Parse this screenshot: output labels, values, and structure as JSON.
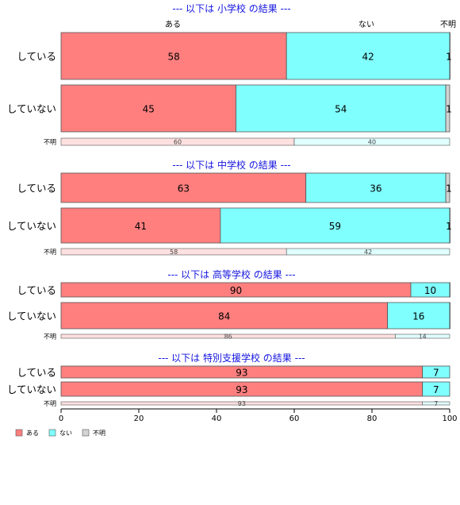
{
  "colors": {
    "ある": "#ff7f7f",
    "ない": "#80ffff",
    "不明": "#d3d3d3",
    "ある_light": "#ffe0e0",
    "ない_light": "#e0ffff",
    "不明_light": "#f2f2f2",
    "title": "#1515e0"
  },
  "column_headers": [
    "ある",
    "ない",
    "不明"
  ],
  "legend": [
    "ある",
    "ない",
    "不明"
  ],
  "chart_data": {
    "type": "bar",
    "orientation": "horizontal-stacked-percent",
    "xlim": [
      0,
      100
    ],
    "x_ticks": [
      0,
      20,
      40,
      60,
      80,
      100
    ],
    "series_names": [
      "ある",
      "ない",
      "不明"
    ],
    "panels": [
      {
        "title": "--- 以下は 小学校 の結果 ---",
        "rows": [
          {
            "label": "している",
            "values": [
              58,
              42,
              1
            ]
          },
          {
            "label": "していない",
            "values": [
              45,
              54,
              1
            ]
          },
          {
            "label": "不明",
            "values": [
              60,
              40,
              0
            ]
          }
        ]
      },
      {
        "title": "--- 以下は 中学校 の結果 ---",
        "rows": [
          {
            "label": "している",
            "values": [
              63,
              36,
              1
            ]
          },
          {
            "label": "していない",
            "values": [
              41,
              59,
              1
            ]
          },
          {
            "label": "不明",
            "values": [
              58,
              42,
              0
            ]
          }
        ]
      },
      {
        "title": "--- 以下は 高等学校 の結果 ---",
        "rows": [
          {
            "label": "している",
            "values": [
              90,
              10,
              0.5
            ]
          },
          {
            "label": "していない",
            "values": [
              84,
              16,
              0.5
            ]
          },
          {
            "label": "不明",
            "values": [
              86,
              14,
              0
            ]
          }
        ]
      },
      {
        "title": "--- 以下は 特別支援学校 の結果 ---",
        "rows": [
          {
            "label": "している",
            "values": [
              93,
              7,
              0
            ]
          },
          {
            "label": "していない",
            "values": [
              93,
              7,
              0
            ]
          },
          {
            "label": "不明",
            "values": [
              93,
              7,
              0
            ]
          }
        ]
      }
    ]
  }
}
